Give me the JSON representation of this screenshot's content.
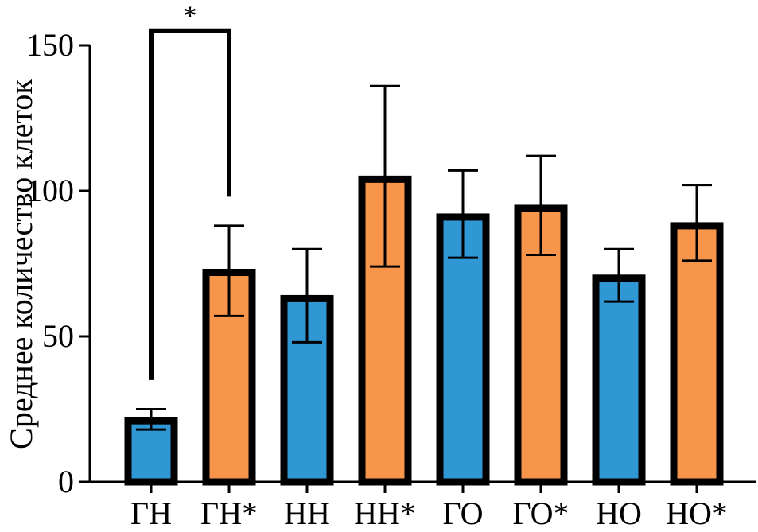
{
  "chart_data": {
    "type": "bar",
    "title": "",
    "xlabel": "",
    "ylabel": "Среднее количество клеток",
    "ylim": [
      0,
      150
    ],
    "yticks": [
      0,
      50,
      100,
      150
    ],
    "categories": [
      "ГН",
      "ГН*",
      "НН",
      "НН*",
      "ГО",
      "ГО*",
      "НО",
      "НО*"
    ],
    "values": [
      21,
      72,
      63,
      104,
      91,
      94,
      70,
      88
    ],
    "error_low": [
      18,
      57,
      48,
      74,
      77,
      78,
      62,
      76
    ],
    "error_high": [
      25,
      88,
      80,
      136,
      107,
      112,
      80,
      102
    ],
    "bar_colors": [
      "#3097d5",
      "#f7964a",
      "#3097d5",
      "#f7964a",
      "#3097d5",
      "#f7964a",
      "#3097d5",
      "#f7964a"
    ],
    "outline_color": "#000000",
    "grid": false,
    "legend": "none",
    "significance": [
      {
        "from": "ГН",
        "to": "ГН*",
        "label": "*",
        "bracket_y": 155,
        "left_end": 35,
        "right_end": 98
      }
    ]
  }
}
